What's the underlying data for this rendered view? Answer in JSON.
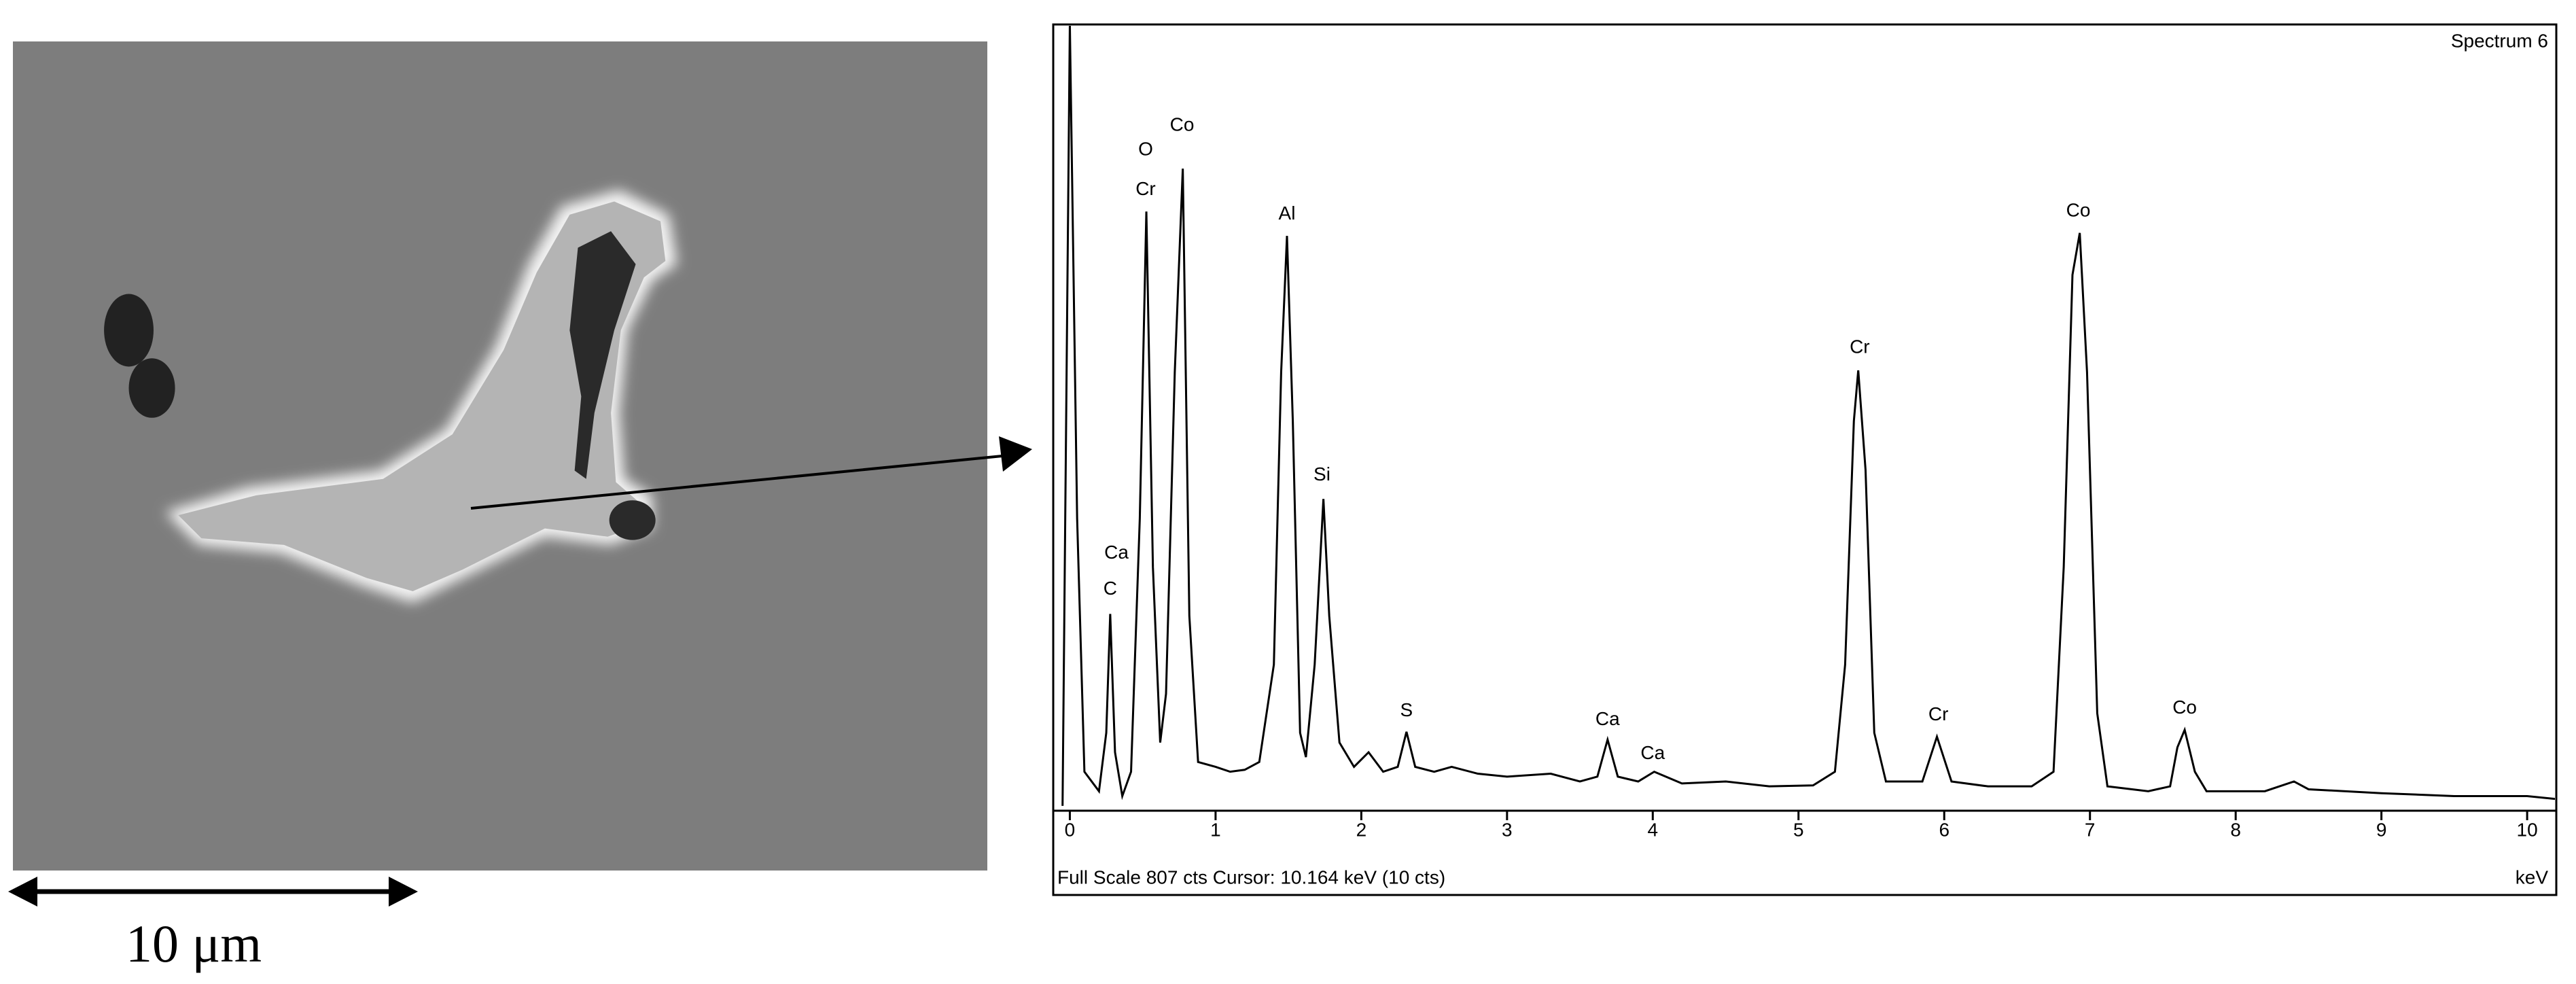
{
  "chart_data": {
    "type": "line",
    "title": "Spectrum 6",
    "x_label": "keV",
    "footer": "Full Scale 807 cts  Cursor: 10.164 keV (10 cts)",
    "x": [
      -0.05,
      0.0,
      0.05,
      0.1,
      0.2,
      0.25,
      0.277,
      0.31,
      0.36,
      0.42,
      0.48,
      0.525,
      0.57,
      0.62,
      0.66,
      0.72,
      0.775,
      0.82,
      0.88,
      1.0,
      1.1,
      1.2,
      1.3,
      1.4,
      1.45,
      1.49,
      1.53,
      1.58,
      1.62,
      1.68,
      1.74,
      1.78,
      1.85,
      1.95,
      2.05,
      2.15,
      2.25,
      2.31,
      2.37,
      2.5,
      2.62,
      2.8,
      3.0,
      3.3,
      3.5,
      3.62,
      3.69,
      3.76,
      3.9,
      4.01,
      4.2,
      4.5,
      4.8,
      5.1,
      5.25,
      5.32,
      5.38,
      5.41,
      5.46,
      5.52,
      5.6,
      5.85,
      5.95,
      6.05,
      6.3,
      6.6,
      6.75,
      6.82,
      6.88,
      6.93,
      6.98,
      7.05,
      7.12,
      7.4,
      7.55,
      7.6,
      7.65,
      7.72,
      7.8,
      8.2,
      8.4,
      8.5,
      9.0,
      9.5,
      10.0,
      10.2
    ],
    "values": [
      5,
      807,
      300,
      40,
      20,
      80,
      202,
      60,
      15,
      40,
      300,
      615,
      250,
      70,
      120,
      450,
      659,
      200,
      50,
      45,
      40,
      42,
      50,
      150,
      450,
      590,
      400,
      80,
      55,
      150,
      320,
      200,
      70,
      45,
      60,
      40,
      45,
      81,
      45,
      40,
      45,
      38,
      35,
      38,
      30,
      35,
      73,
      35,
      30,
      40,
      28,
      30,
      25,
      26,
      40,
      150,
      400,
      452,
      350,
      80,
      30,
      30,
      76,
      30,
      25,
      25,
      40,
      250,
      550,
      593,
      450,
      100,
      25,
      20,
      25,
      65,
      83,
      40,
      20,
      20,
      30,
      22,
      18,
      15,
      15,
      12
    ],
    "color": "#000000",
    "xlim": [
      -0.1,
      10.2
    ],
    "xticks": [
      0,
      1,
      2,
      3,
      4,
      5,
      6,
      7,
      8,
      9,
      10
    ],
    "ylim": [
      0,
      807
    ],
    "annotations": [
      {
        "text": "C",
        "x": 0.277,
        "y": 227
      },
      {
        "text": "Ca",
        "x": 0.32,
        "y": 264
      },
      {
        "text": "O",
        "x": 0.52,
        "y": 678
      },
      {
        "text": "Cr",
        "x": 0.52,
        "y": 637
      },
      {
        "text": "Co",
        "x": 0.77,
        "y": 703
      },
      {
        "text": "Al",
        "x": 1.49,
        "y": 612
      },
      {
        "text": "Si",
        "x": 1.73,
        "y": 344
      },
      {
        "text": "S",
        "x": 2.31,
        "y": 102
      },
      {
        "text": "Ca",
        "x": 3.69,
        "y": 93
      },
      {
        "text": "Ca",
        "x": 4.0,
        "y": 58
      },
      {
        "text": "Cr",
        "x": 5.42,
        "y": 475
      },
      {
        "text": "Cr",
        "x": 5.96,
        "y": 98
      },
      {
        "text": "Co",
        "x": 6.92,
        "y": 615
      },
      {
        "text": "Co",
        "x": 7.65,
        "y": 105
      }
    ]
  },
  "micrograph": {
    "scale_bar_label": "10 μm"
  }
}
